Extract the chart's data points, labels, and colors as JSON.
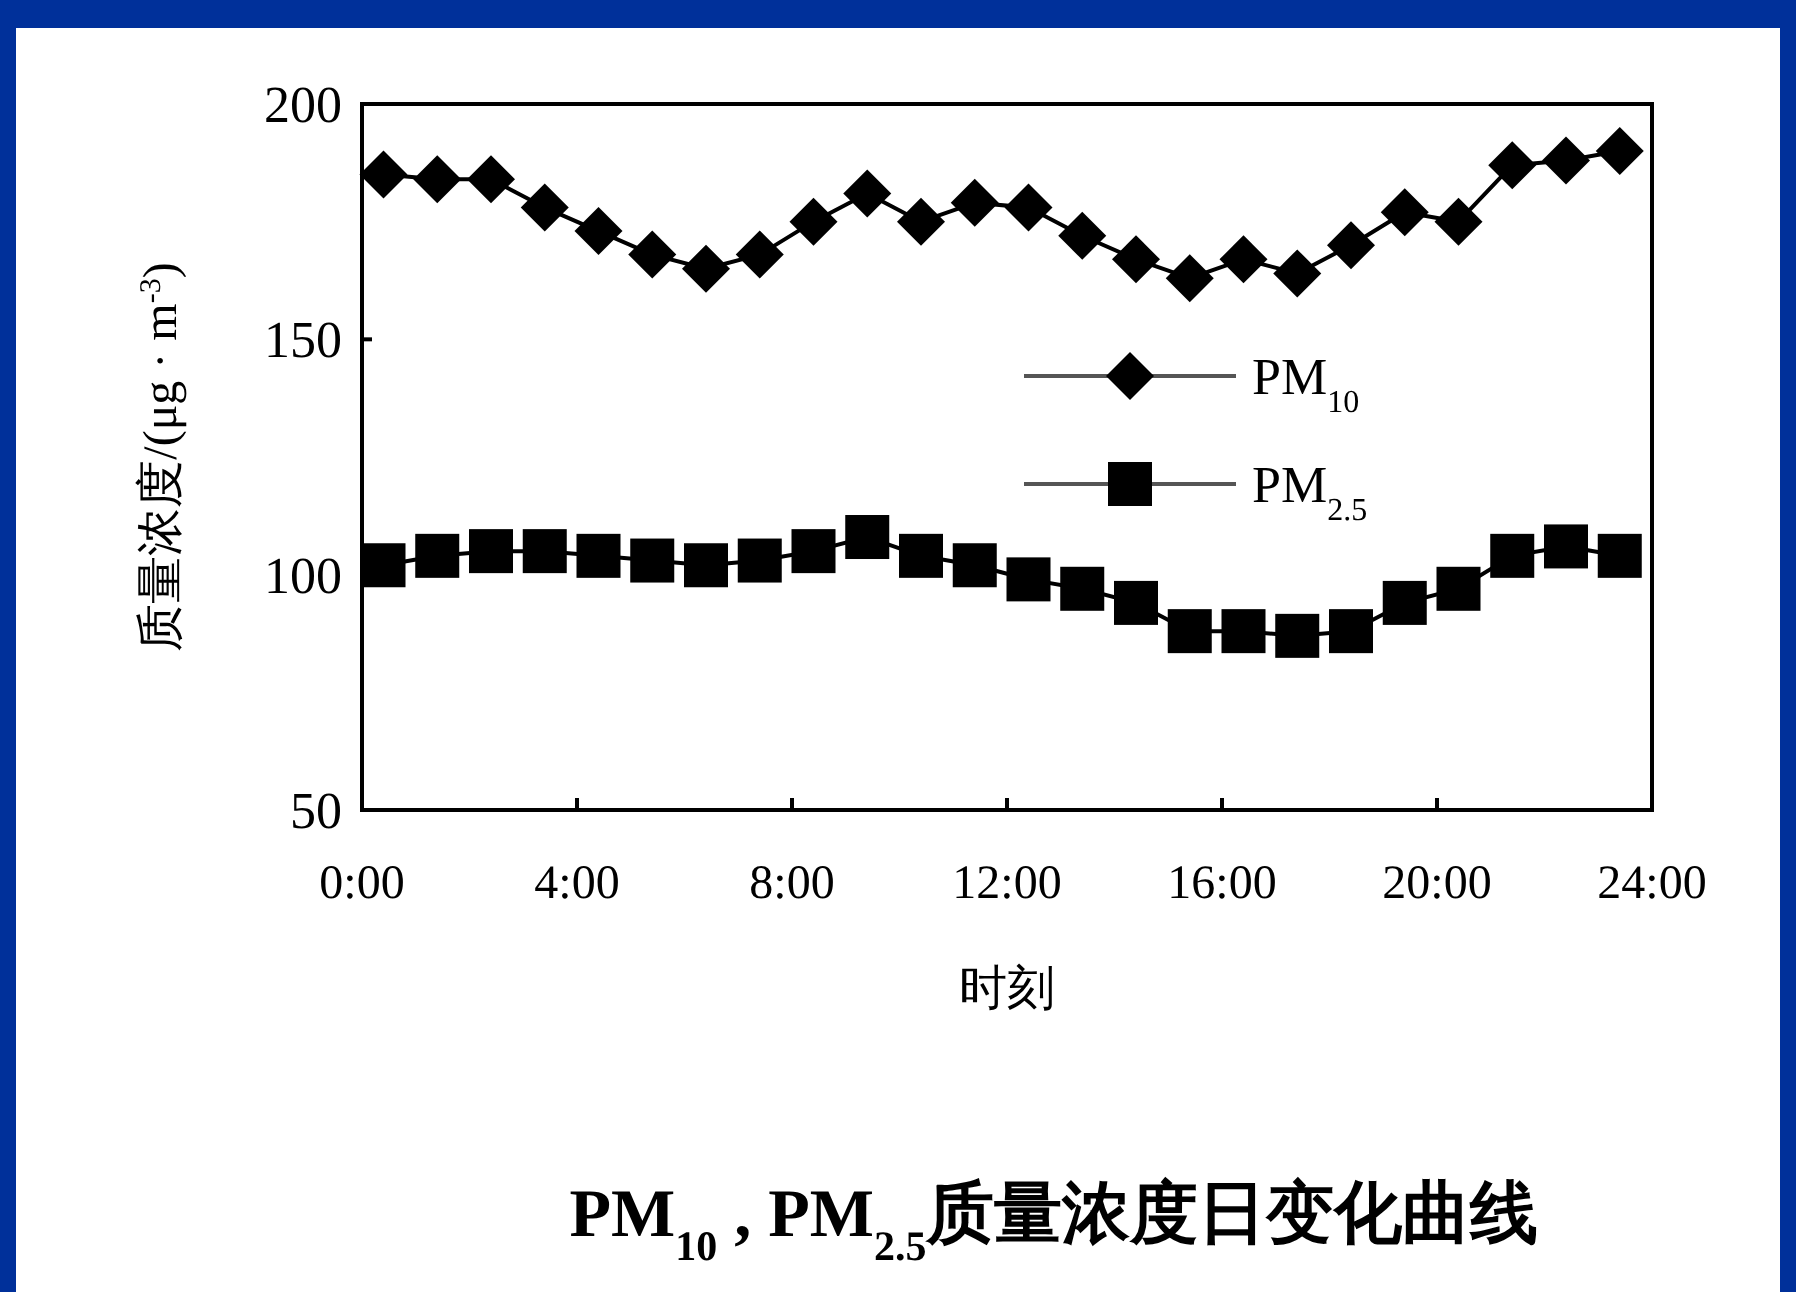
{
  "chart_data": {
    "type": "line",
    "title": "PM$_{10}$ , PM$_{2.5}$质量浓度日变化曲线",
    "xlabel": "时刻",
    "ylabel": "质量浓度/(μg · m$^{-3}$)",
    "x": [
      0.4,
      1.4,
      2.4,
      3.4,
      4.4,
      5.4,
      6.4,
      7.4,
      8.4,
      9.4,
      10.4,
      11.4,
      12.4,
      13.4,
      14.4,
      15.4,
      16.4,
      17.4,
      18.4,
      19.4,
      20.4,
      21.4,
      22.4,
      23.4
    ],
    "xlim": [
      0,
      24
    ],
    "xticks": [
      {
        "value": 0,
        "label": "0:00"
      },
      {
        "value": 4,
        "label": "4:00"
      },
      {
        "value": 8,
        "label": "8:00"
      },
      {
        "value": 12,
        "label": "12:00"
      },
      {
        "value": 16,
        "label": "16:00"
      },
      {
        "value": 20,
        "label": "20:00"
      },
      {
        "value": 24,
        "label": "24:00"
      }
    ],
    "ylim": [
      50,
      200
    ],
    "yticks": [
      50,
      100,
      150,
      200
    ],
    "legend": "right",
    "line_style": "solid",
    "series": [
      {
        "name": "PM$_{10}$",
        "color": "#000000",
        "marker": "diamond",
        "values": [
          185,
          184,
          184,
          178,
          173,
          168,
          165,
          168,
          175,
          181,
          175,
          179,
          178,
          172,
          167,
          163,
          167,
          164,
          170,
          177,
          175,
          187,
          188,
          190
        ]
      },
      {
        "name": "PM$_{2.5}$",
        "color": "#000000",
        "marker": "square",
        "values": [
          102,
          104,
          105,
          105,
          104,
          103,
          102,
          103,
          105,
          108,
          104,
          102,
          99,
          97,
          94,
          88,
          88,
          87,
          88,
          94,
          97,
          104,
          106,
          104
        ]
      }
    ]
  }
}
